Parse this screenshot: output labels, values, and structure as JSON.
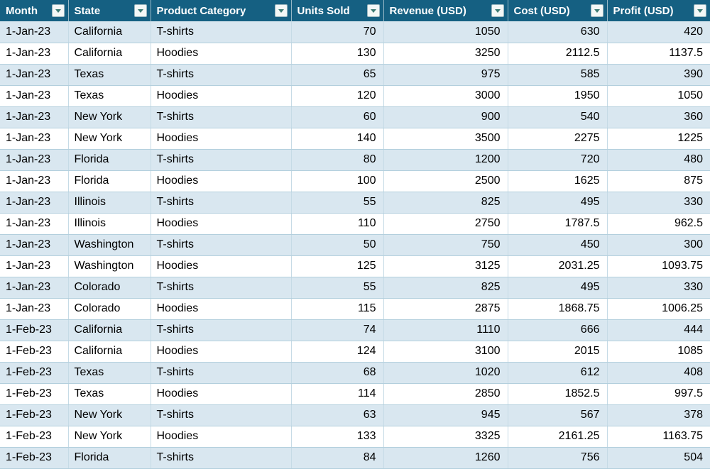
{
  "table": {
    "columns": [
      {
        "key": "month",
        "label": "Month",
        "align": "left"
      },
      {
        "key": "state",
        "label": "State",
        "align": "left"
      },
      {
        "key": "product_category",
        "label": "Product Category",
        "align": "left"
      },
      {
        "key": "units_sold",
        "label": "Units Sold",
        "align": "right"
      },
      {
        "key": "revenue_usd",
        "label": "Revenue (USD)",
        "align": "right"
      },
      {
        "key": "cost_usd",
        "label": "Cost (USD)",
        "align": "right"
      },
      {
        "key": "profit_usd",
        "label": "Profit (USD)",
        "align": "right"
      }
    ],
    "rows": [
      [
        "1-Jan-23",
        "California",
        "T-shirts",
        "70",
        "1050",
        "630",
        "420"
      ],
      [
        "1-Jan-23",
        "California",
        "Hoodies",
        "130",
        "3250",
        "2112.5",
        "1137.5"
      ],
      [
        "1-Jan-23",
        "Texas",
        "T-shirts",
        "65",
        "975",
        "585",
        "390"
      ],
      [
        "1-Jan-23",
        "Texas",
        "Hoodies",
        "120",
        "3000",
        "1950",
        "1050"
      ],
      [
        "1-Jan-23",
        "New York",
        "T-shirts",
        "60",
        "900",
        "540",
        "360"
      ],
      [
        "1-Jan-23",
        "New York",
        "Hoodies",
        "140",
        "3500",
        "2275",
        "1225"
      ],
      [
        "1-Jan-23",
        "Florida",
        "T-shirts",
        "80",
        "1200",
        "720",
        "480"
      ],
      [
        "1-Jan-23",
        "Florida",
        "Hoodies",
        "100",
        "2500",
        "1625",
        "875"
      ],
      [
        "1-Jan-23",
        "Illinois",
        "T-shirts",
        "55",
        "825",
        "495",
        "330"
      ],
      [
        "1-Jan-23",
        "Illinois",
        "Hoodies",
        "110",
        "2750",
        "1787.5",
        "962.5"
      ],
      [
        "1-Jan-23",
        "Washington",
        "T-shirts",
        "50",
        "750",
        "450",
        "300"
      ],
      [
        "1-Jan-23",
        "Washington",
        "Hoodies",
        "125",
        "3125",
        "2031.25",
        "1093.75"
      ],
      [
        "1-Jan-23",
        "Colorado",
        "T-shirts",
        "55",
        "825",
        "495",
        "330"
      ],
      [
        "1-Jan-23",
        "Colorado",
        "Hoodies",
        "115",
        "2875",
        "1868.75",
        "1006.25"
      ],
      [
        "1-Feb-23",
        "California",
        "T-shirts",
        "74",
        "1110",
        "666",
        "444"
      ],
      [
        "1-Feb-23",
        "California",
        "Hoodies",
        "124",
        "3100",
        "2015",
        "1085"
      ],
      [
        "1-Feb-23",
        "Texas",
        "T-shirts",
        "68",
        "1020",
        "612",
        "408"
      ],
      [
        "1-Feb-23",
        "Texas",
        "Hoodies",
        "114",
        "2850",
        "1852.5",
        "997.5"
      ],
      [
        "1-Feb-23",
        "New York",
        "T-shirts",
        "63",
        "945",
        "567",
        "378"
      ],
      [
        "1-Feb-23",
        "New York",
        "Hoodies",
        "133",
        "3325",
        "2161.25",
        "1163.75"
      ],
      [
        "1-Feb-23",
        "Florida",
        "T-shirts",
        "84",
        "1260",
        "756",
        "504"
      ]
    ]
  },
  "icons": {
    "filter_dropdown": "chevron-down"
  },
  "colors": {
    "header_bg": "#156082",
    "header_text": "#FFFFFF",
    "banded_row_bg": "#D9E7F0",
    "plain_row_bg": "#FFFFFF",
    "grid_line": "#B3CFDD",
    "filter_arrow": "#3E7C74"
  }
}
